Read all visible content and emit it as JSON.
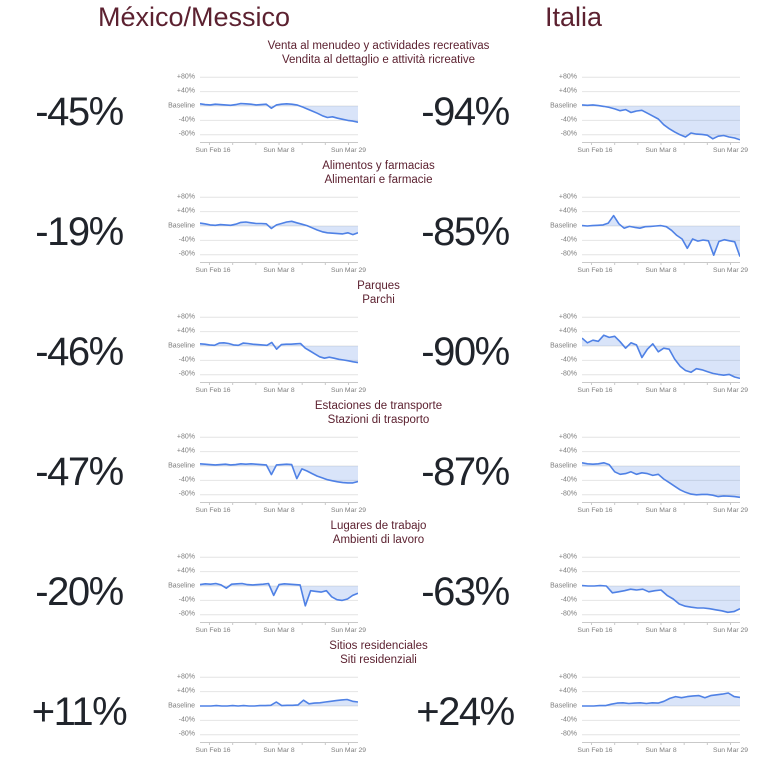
{
  "page": {
    "header_mexico": "México/Messico",
    "header_italia": "Italia",
    "accent_color": "#5c2130",
    "value_color": "#20242b",
    "line_color": "#4f81e5",
    "fill_color": "rgba(83,131,229,0.22)",
    "grid_color": "#e4e4e4",
    "axis_color": "#c9c9c9"
  },
  "axis": {
    "y_labels": [
      "+80%",
      "+40%",
      "Baseline",
      "-40%",
      "-80%"
    ],
    "y_values": [
      80,
      40,
      0,
      -40,
      -80
    ],
    "ylim": [
      -100,
      100
    ],
    "x_labels": [
      "Sun Feb 16",
      "Sun Mar 8",
      "Sun Mar 29"
    ],
    "x_label_positions": [
      0.06,
      0.5,
      0.94
    ],
    "x_tick_positions": [
      0.06,
      0.2067,
      0.3533,
      0.5,
      0.6467,
      0.7933,
      0.94
    ],
    "grid": true,
    "unit": "% change from baseline"
  },
  "chart_data": [
    {
      "type": "line",
      "title_es": "Venta al menudeo y actividades recreativas",
      "title_it": "Vendita al dettaglio e attività ricreative",
      "mexico": {
        "change_label": "-45%",
        "change_value": -45,
        "series": [
          6,
          4,
          3,
          5,
          4,
          3,
          2,
          4,
          7,
          6,
          5,
          3,
          4,
          5,
          -6,
          3,
          5,
          6,
          5,
          3,
          -2,
          -8,
          -14,
          -20,
          -27,
          -32,
          -30,
          -34,
          -37,
          -40,
          -42,
          -45
        ]
      },
      "italia": {
        "change_label": "-94%",
        "change_value": -94,
        "series": [
          3,
          2,
          3,
          1,
          -1,
          -4,
          -8,
          -13,
          -10,
          -18,
          -14,
          -12,
          -20,
          -28,
          -36,
          -52,
          -63,
          -72,
          -80,
          -86,
          -75,
          -78,
          -79,
          -81,
          -91,
          -84,
          -82,
          -86,
          -89,
          -94
        ]
      }
    },
    {
      "type": "line",
      "title_es": "Alimentos y farmacias",
      "title_it": "Alimentari e farmacie",
      "mexico": {
        "change_label": "-19%",
        "change_value": -19,
        "series": [
          8,
          6,
          3,
          2,
          4,
          3,
          2,
          5,
          10,
          11,
          9,
          7,
          7,
          6,
          -7,
          3,
          7,
          11,
          13,
          9,
          5,
          1,
          -5,
          -11,
          -16,
          -19,
          -20,
          -21,
          -22,
          -19,
          -24,
          -19
        ]
      },
      "italia": {
        "change_label": "-85%",
        "change_value": -85,
        "series": [
          1,
          0,
          1,
          2,
          3,
          8,
          29,
          6,
          -6,
          -1,
          -4,
          -6,
          -2,
          -1,
          0,
          1,
          -2,
          -12,
          -26,
          -36,
          -62,
          -36,
          -42,
          -39,
          -41,
          -81,
          -43,
          -38,
          -41,
          -44,
          -85
        ]
      }
    },
    {
      "type": "line",
      "title_es": "Parques",
      "title_it": "Parchi",
      "mexico": {
        "change_label": "-46%",
        "change_value": -46,
        "series": [
          6,
          5,
          3,
          2,
          8,
          9,
          7,
          3,
          2,
          8,
          7,
          5,
          4,
          3,
          2,
          10,
          -9,
          4,
          5,
          5,
          6,
          7,
          -6,
          -14,
          -22,
          -30,
          -34,
          -31,
          -34,
          -37,
          -39,
          -41,
          -44,
          -46
        ]
      },
      "italia": {
        "change_label": "-90%",
        "change_value": -90,
        "series": [
          22,
          9,
          16,
          13,
          30,
          24,
          27,
          12,
          -6,
          9,
          3,
          -32,
          -9,
          6,
          -16,
          -6,
          -9,
          -36,
          -56,
          -68,
          -73,
          -63,
          -66,
          -71,
          -76,
          -79,
          -81,
          -79,
          -86,
          -90
        ]
      }
    },
    {
      "type": "line",
      "title_es": "Estaciones de transporte",
      "title_it": "Stazioni di trasporto",
      "mexico": {
        "change_label": "-47%",
        "change_value": -47,
        "series": [
          6,
          5,
          4,
          3,
          4,
          5,
          3,
          4,
          6,
          5,
          6,
          5,
          4,
          3,
          -24,
          3,
          4,
          5,
          4,
          -35,
          -8,
          -14,
          -21,
          -28,
          -33,
          -38,
          -41,
          -44,
          -46,
          -47,
          -47,
          -43
        ]
      },
      "italia": {
        "change_label": "-87%",
        "change_value": -87,
        "series": [
          9,
          6,
          5,
          6,
          9,
          4,
          -16,
          -23,
          -21,
          -16,
          -23,
          -19,
          -21,
          -26,
          -23,
          -36,
          -46,
          -56,
          -66,
          -73,
          -78,
          -80,
          -79,
          -79,
          -81,
          -85,
          -83,
          -84,
          -85,
          -87
        ]
      }
    },
    {
      "type": "line",
      "title_es": "Lugares de trabajo",
      "title_it": "Ambienti di lavoro",
      "mexico": {
        "change_label": "-20%",
        "change_value": -20,
        "series": [
          4,
          6,
          5,
          7,
          3,
          -6,
          5,
          6,
          7,
          4,
          3,
          4,
          5,
          7,
          -26,
          4,
          6,
          5,
          4,
          3,
          -55,
          -13,
          -15,
          -17,
          -13,
          -30,
          -38,
          -40,
          -36,
          -26,
          -20
        ]
      },
      "italia": {
        "change_label": "-63%",
        "change_value": -63,
        "series": [
          1,
          0,
          0,
          1,
          0,
          -19,
          -16,
          -13,
          -9,
          -11,
          -9,
          -16,
          -13,
          -11,
          -26,
          -36,
          -50,
          -56,
          -59,
          -61,
          -61,
          -63,
          -66,
          -69,
          -73,
          -71,
          -63
        ]
      }
    },
    {
      "type": "line",
      "title_es": "Sitios residenciales",
      "title_it": "Siti residenziali",
      "mexico": {
        "change_label": "+11%",
        "change_value": 11,
        "series": [
          0,
          0,
          0,
          1,
          0,
          0,
          1,
          0,
          1,
          0,
          0,
          1,
          1,
          2,
          11,
          1,
          2,
          2,
          3,
          16,
          6,
          8,
          9,
          11,
          13,
          15,
          17,
          18,
          13,
          11
        ]
      },
      "italia": {
        "change_label": "+24%",
        "change_value": 24,
        "series": [
          0,
          0,
          0,
          1,
          1,
          5,
          8,
          9,
          7,
          8,
          9,
          7,
          9,
          8,
          13,
          21,
          26,
          23,
          26,
          28,
          29,
          23,
          29,
          31,
          33,
          36,
          26,
          24
        ]
      }
    }
  ]
}
